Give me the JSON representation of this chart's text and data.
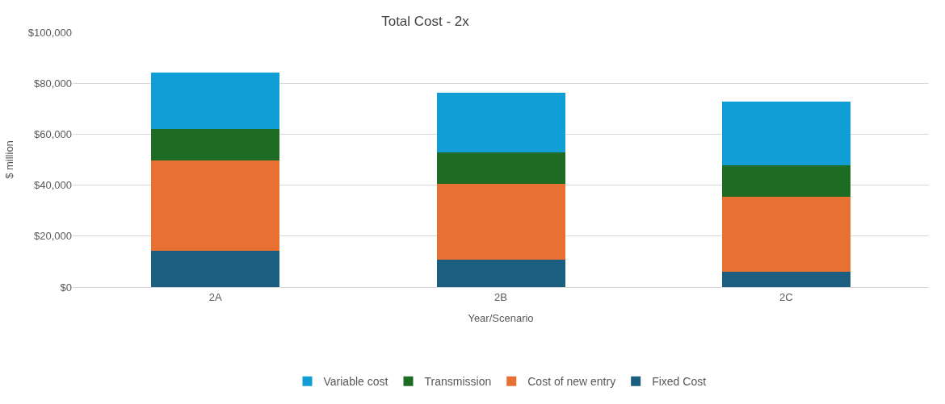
{
  "chart_data": {
    "type": "bar",
    "title": "Total Cost - 2x",
    "xlabel": "Year/Scenario",
    "ylabel": "$ million",
    "categories": [
      "2A",
      "2B",
      "2C"
    ],
    "stacked": true,
    "series": [
      {
        "name": "Fixed Cost",
        "color": "#1b5e80",
        "values": [
          14200,
          10900,
          5900
        ]
      },
      {
        "name": "Cost of new entry",
        "color": "#e87032",
        "values": [
          35500,
          29600,
          29400
        ]
      },
      {
        "name": "Transmission",
        "color": "#1e6b24",
        "values": [
          12200,
          12500,
          12600
        ]
      },
      {
        "name": "Variable cost",
        "color": "#119dd6",
        "values": [
          22200,
          23400,
          25000
        ]
      }
    ],
    "ylim": [
      0,
      100000
    ],
    "yticks": [
      {
        "value": 0,
        "label": "$0"
      },
      {
        "value": 20000,
        "label": "$20,000"
      },
      {
        "value": 40000,
        "label": "$40,000"
      },
      {
        "value": 60000,
        "label": "$60,000"
      },
      {
        "value": 80000,
        "label": "$80,000"
      },
      {
        "value": 100000,
        "label": "$100,000"
      }
    ],
    "grid": "y",
    "legend": "bottom"
  }
}
